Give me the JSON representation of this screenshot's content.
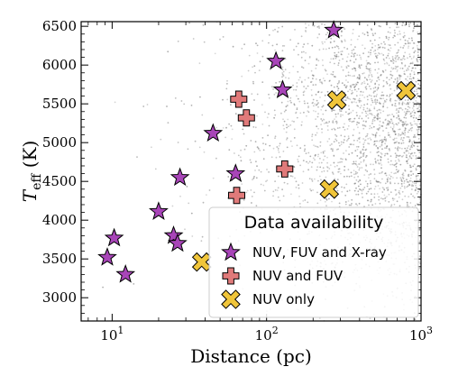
{
  "chart_data": {
    "type": "scatter",
    "title": "",
    "xlabel": "Distance (pc)",
    "ylabel": "T_eff (K)",
    "ylabel_main": "T",
    "ylabel_sub": "eff",
    "ylabel_unit": " (K)",
    "xscale": "log",
    "xlim": [
      6.3,
      1000
    ],
    "ylim": [
      2700,
      6560
    ],
    "x_ticks": [
      {
        "value": 10,
        "base": "10",
        "exp": "1"
      },
      {
        "value": 100,
        "base": "10",
        "exp": "2"
      },
      {
        "value": 1000,
        "base": "10",
        "exp": "3"
      }
    ],
    "y_ticks": [
      "3000",
      "3500",
      "4000",
      "4500",
      "5000",
      "5500",
      "6000",
      "6500"
    ],
    "grid": false,
    "legend": {
      "title": "Data availability",
      "placement": "lower-right",
      "entries": [
        "NUV, FUV and X-ray",
        "NUV and FUV",
        "NUV only"
      ]
    },
    "colors": {
      "star": "#a845b8",
      "plus": "#e07a7a",
      "x_marker": "#f0c53a",
      "background_points": "#707070"
    },
    "background_points_note_count": 2600,
    "series": [
      {
        "name": "NUV, FUV and X-ray",
        "marker": "star",
        "points": [
          {
            "x": 9.3,
            "y": 3520
          },
          {
            "x": 10.3,
            "y": 3770
          },
          {
            "x": 12.2,
            "y": 3300
          },
          {
            "x": 20.0,
            "y": 4110
          },
          {
            "x": 25.0,
            "y": 3800
          },
          {
            "x": 26.5,
            "y": 3700
          },
          {
            "x": 27.5,
            "y": 4550
          },
          {
            "x": 45.0,
            "y": 5120
          },
          {
            "x": 63.0,
            "y": 4600
          },
          {
            "x": 115.0,
            "y": 6050
          },
          {
            "x": 127.0,
            "y": 5680
          },
          {
            "x": 272.0,
            "y": 6450
          }
        ]
      },
      {
        "name": "NUV and FUV",
        "marker": "plus",
        "points": [
          {
            "x": 64.0,
            "y": 4320
          },
          {
            "x": 66.0,
            "y": 5560
          },
          {
            "x": 74.0,
            "y": 5320
          },
          {
            "x": 131.0,
            "y": 4660
          }
        ]
      },
      {
        "name": "NUV only",
        "marker": "x",
        "points": [
          {
            "x": 38.0,
            "y": 3460
          },
          {
            "x": 255.0,
            "y": 4400
          },
          {
            "x": 285.0,
            "y": 5550
          },
          {
            "x": 800.0,
            "y": 5670
          }
        ]
      }
    ]
  }
}
